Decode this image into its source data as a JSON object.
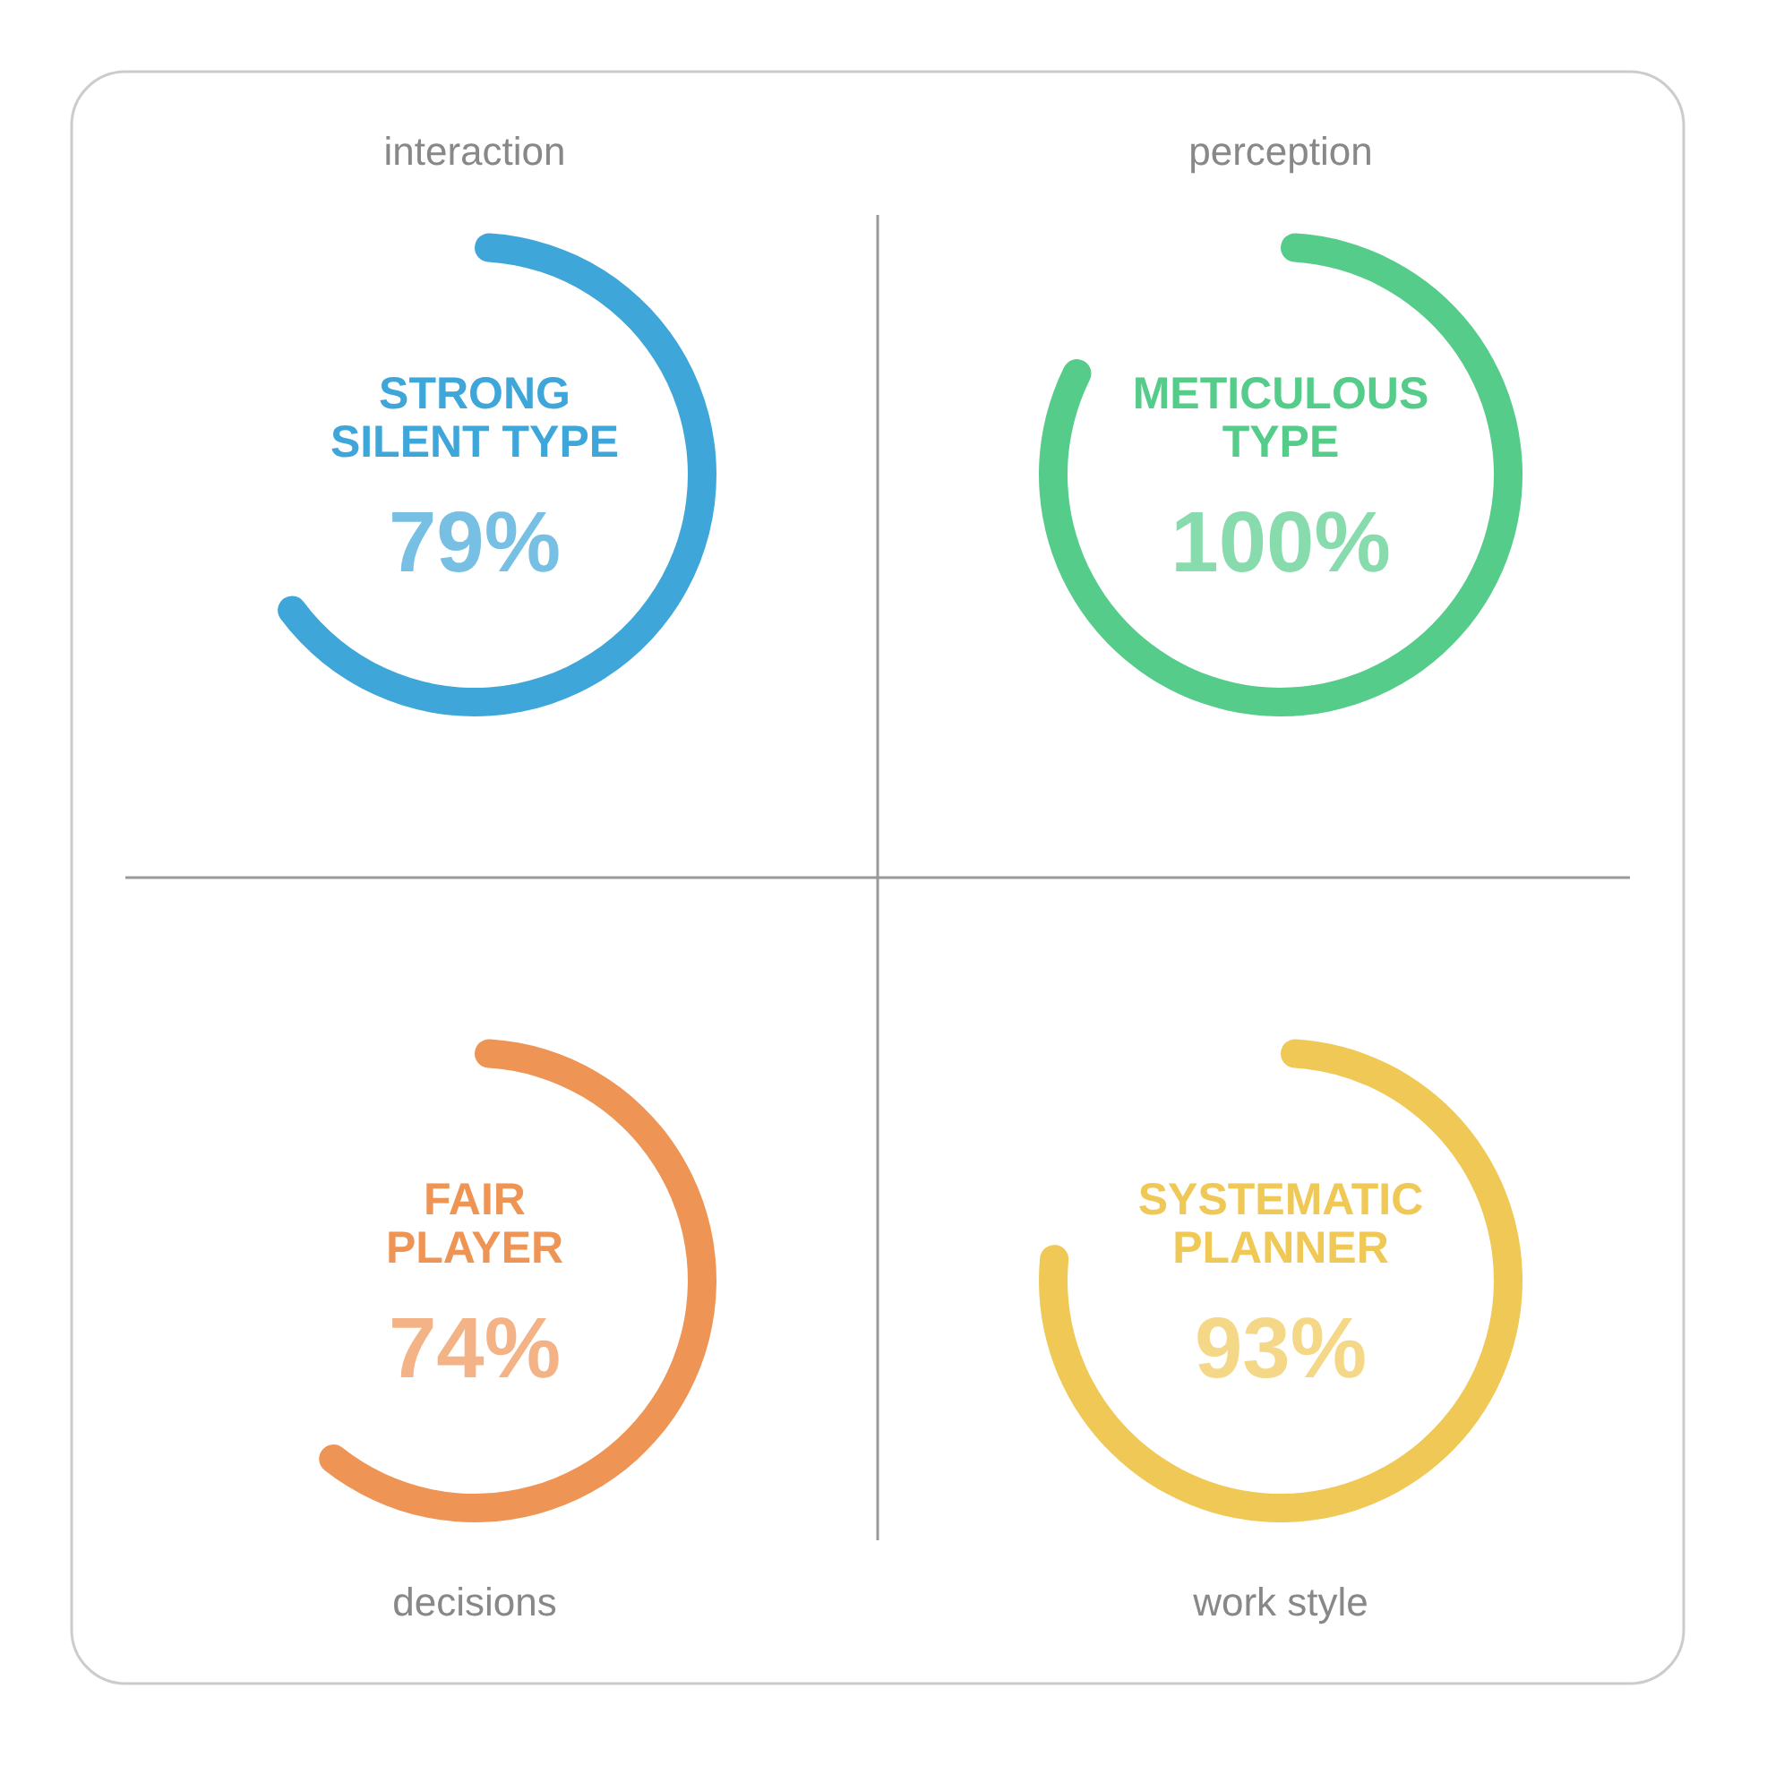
{
  "chart_data": {
    "type": "other",
    "categories": [
      "interaction",
      "perception",
      "decisions",
      "work style"
    ],
    "series": [
      {
        "name": "STRONG\nSILENT TYPE",
        "color": "#3ea6d8",
        "values": [
          79,
          null,
          null,
          null
        ],
        "value_labels": [
          "79%",
          null,
          null,
          null
        ]
      },
      {
        "name": "METICULOUS\nTYPE",
        "color": "#55cc8a",
        "values": [
          null,
          100,
          null,
          null
        ],
        "value_labels": [
          null,
          "100%",
          null,
          null
        ]
      },
      {
        "name": "FAIR\nPLAYER",
        "color": "#ee9455",
        "values": [
          null,
          null,
          74,
          null
        ],
        "value_labels": [
          null,
          null,
          "74%",
          null
        ]
      },
      {
        "name": "SYSTEMATIC\nPLANNER",
        "color": "#f0c855",
        "values": [
          null,
          null,
          null,
          93
        ],
        "value_labels": [
          null,
          null,
          null,
          "93%"
        ]
      }
    ]
  }
}
